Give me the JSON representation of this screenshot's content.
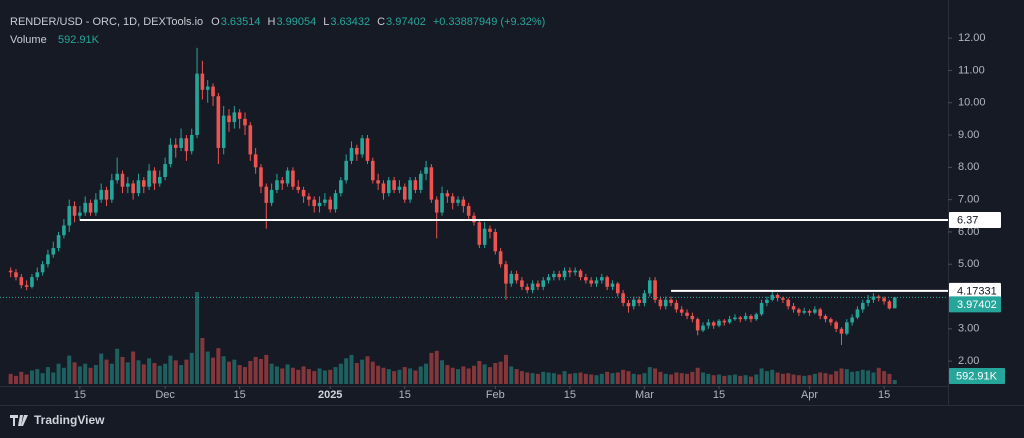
{
  "chart_data": {
    "type": "candlestick",
    "title": "RENDER/USD - ORC, 1D, DEXTools.io",
    "field_labels": [
      "O",
      "H",
      "L",
      "C"
    ],
    "change": "+0.33887949 (+9.32%)",
    "volume_name": "Volume",
    "volume_tag": "592.91K",
    "brand": "TradingView",
    "up_color": "#26a69a",
    "down_color": "#ef5350",
    "xlim": [
      -2,
      176
    ],
    "xticks": [
      {
        "value": 13,
        "label": "15"
      },
      {
        "value": 29,
        "label": "Dec"
      },
      {
        "value": 43,
        "label": "15"
      },
      {
        "value": 60,
        "label": "2025"
      },
      {
        "value": 74,
        "label": "15"
      },
      {
        "value": 91,
        "label": "Feb"
      },
      {
        "value": 105,
        "label": "15"
      },
      {
        "value": 119,
        "label": "Mar"
      },
      {
        "value": 133,
        "label": "15"
      },
      {
        "value": 150,
        "label": "Apr"
      },
      {
        "value": 164,
        "label": "15"
      }
    ],
    "ylim": [
      1.23,
      13.18
    ],
    "yticks": [
      {
        "value": 2,
        "label": "2.00"
      },
      {
        "value": 3,
        "label": "3.00"
      },
      {
        "value": 5,
        "label": "5.00"
      },
      {
        "value": 6,
        "label": "6.00"
      },
      {
        "value": 7,
        "label": "7.00"
      },
      {
        "value": 8,
        "label": "8.00"
      },
      {
        "value": 9,
        "label": "9.00"
      },
      {
        "value": 10,
        "label": "10.00"
      },
      {
        "value": 11,
        "label": "11.00"
      },
      {
        "value": 12,
        "label": "12.00"
      }
    ],
    "grid": false,
    "hlines": [
      {
        "value": 6.37,
        "from": 13
      },
      {
        "value": 4.17331,
        "from": 124
      }
    ],
    "ohlc": [
      [
        4.8,
        4.9,
        4.6,
        4.75
      ],
      [
        4.75,
        4.85,
        4.5,
        4.6
      ],
      [
        4.6,
        4.7,
        4.25,
        4.35
      ],
      [
        4.35,
        4.5,
        4.2,
        4.3
      ],
      [
        4.3,
        4.7,
        4.25,
        4.6
      ],
      [
        4.6,
        4.9,
        4.5,
        4.75
      ],
      [
        4.75,
        5.1,
        4.65,
        5.0
      ],
      [
        5.0,
        5.45,
        4.9,
        5.3
      ],
      [
        5.3,
        5.7,
        5.2,
        5.5
      ],
      [
        5.5,
        6.0,
        5.4,
        5.9
      ],
      [
        5.9,
        6.4,
        5.8,
        6.2
      ],
      [
        6.2,
        7.0,
        6.0,
        6.8
      ],
      [
        6.8,
        6.95,
        6.3,
        6.5
      ],
      [
        6.5,
        6.8,
        6.35,
        6.6
      ],
      [
        6.6,
        7.1,
        6.5,
        6.9
      ],
      [
        6.9,
        7.0,
        6.5,
        6.6
      ],
      [
        6.6,
        7.2,
        6.5,
        7.0
      ],
      [
        7.0,
        7.5,
        6.9,
        7.3
      ],
      [
        7.3,
        7.4,
        6.8,
        7.0
      ],
      [
        7.0,
        7.8,
        6.9,
        7.6
      ],
      [
        7.6,
        8.3,
        7.5,
        7.8
      ],
      [
        7.8,
        7.9,
        7.2,
        7.4
      ],
      [
        7.4,
        7.7,
        7.2,
        7.5
      ],
      [
        7.5,
        7.6,
        7.0,
        7.2
      ],
      [
        7.2,
        7.8,
        7.1,
        7.6
      ],
      [
        7.6,
        7.7,
        7.2,
        7.4
      ],
      [
        7.4,
        8.1,
        7.3,
        7.9
      ],
      [
        7.9,
        8.0,
        7.3,
        7.5
      ],
      [
        7.5,
        7.9,
        7.4,
        7.7
      ],
      [
        7.7,
        8.3,
        7.6,
        8.1
      ],
      [
        8.1,
        8.9,
        8.0,
        8.7
      ],
      [
        8.7,
        8.9,
        8.3,
        8.6
      ],
      [
        8.6,
        9.2,
        8.5,
        8.9
      ],
      [
        8.9,
        9.0,
        8.2,
        8.5
      ],
      [
        8.5,
        9.2,
        8.4,
        9.0
      ],
      [
        9.0,
        11.7,
        8.9,
        10.9
      ],
      [
        10.9,
        11.3,
        10.1,
        10.4
      ],
      [
        10.4,
        10.7,
        10.0,
        10.5
      ],
      [
        10.5,
        10.6,
        9.9,
        10.2
      ],
      [
        10.2,
        10.3,
        8.1,
        8.6
      ],
      [
        8.6,
        9.9,
        8.4,
        9.6
      ],
      [
        9.6,
        9.8,
        9.1,
        9.4
      ],
      [
        9.4,
        9.9,
        9.2,
        9.7
      ],
      [
        9.7,
        9.8,
        9.2,
        9.5
      ],
      [
        9.5,
        9.7,
        9.0,
        9.3
      ],
      [
        9.3,
        9.4,
        8.2,
        8.4
      ],
      [
        8.4,
        8.6,
        7.8,
        8.0
      ],
      [
        8.0,
        8.1,
        7.2,
        7.4
      ],
      [
        7.4,
        7.5,
        6.1,
        6.9
      ],
      [
        6.9,
        7.5,
        6.8,
        7.3
      ],
      [
        7.3,
        7.8,
        7.2,
        7.6
      ],
      [
        7.6,
        7.7,
        7.3,
        7.5
      ],
      [
        7.5,
        8.0,
        7.4,
        7.9
      ],
      [
        7.9,
        8.0,
        7.3,
        7.4
      ],
      [
        7.4,
        7.6,
        7.2,
        7.3
      ],
      [
        7.3,
        7.4,
        6.9,
        7.1
      ],
      [
        7.1,
        7.2,
        6.8,
        7.0
      ],
      [
        7.0,
        7.1,
        6.6,
        6.8
      ],
      [
        6.8,
        7.1,
        6.6,
        6.9
      ],
      [
        6.9,
        7.2,
        6.8,
        7.0
      ],
      [
        7.0,
        7.1,
        6.6,
        6.7
      ],
      [
        6.7,
        7.3,
        6.6,
        7.2
      ],
      [
        7.2,
        7.7,
        7.1,
        7.6
      ],
      [
        7.6,
        8.4,
        7.5,
        8.2
      ],
      [
        8.2,
        8.8,
        8.1,
        8.6
      ],
      [
        8.6,
        8.7,
        8.2,
        8.4
      ],
      [
        8.4,
        9.0,
        8.3,
        8.9
      ],
      [
        8.9,
        9.0,
        8.1,
        8.2
      ],
      [
        8.2,
        8.3,
        7.5,
        7.6
      ],
      [
        7.6,
        7.8,
        7.3,
        7.5
      ],
      [
        7.5,
        7.6,
        7.0,
        7.2
      ],
      [
        7.2,
        7.7,
        7.1,
        7.6
      ],
      [
        7.6,
        7.7,
        7.2,
        7.3
      ],
      [
        7.3,
        7.6,
        7.2,
        7.4
      ],
      [
        7.4,
        7.5,
        6.9,
        7.0
      ],
      [
        7.0,
        7.7,
        6.9,
        7.6
      ],
      [
        7.6,
        7.7,
        7.2,
        7.3
      ],
      [
        7.3,
        7.9,
        7.2,
        7.8
      ],
      [
        7.8,
        8.2,
        7.6,
        8.0
      ],
      [
        8.0,
        8.1,
        6.9,
        7.0
      ],
      [
        7.0,
        7.1,
        5.8,
        6.6
      ],
      [
        6.6,
        7.4,
        6.5,
        7.2
      ],
      [
        7.2,
        7.3,
        6.9,
        7.1
      ],
      [
        7.1,
        7.2,
        6.7,
        6.9
      ],
      [
        6.9,
        7.1,
        6.8,
        7.0
      ],
      [
        7.0,
        7.1,
        6.6,
        6.8
      ],
      [
        6.8,
        6.9,
        6.4,
        6.5
      ],
      [
        6.5,
        6.6,
        6.2,
        6.3
      ],
      [
        6.3,
        6.4,
        5.5,
        5.6
      ],
      [
        5.6,
        6.3,
        5.5,
        6.1
      ],
      [
        6.1,
        6.2,
        5.8,
        6.0
      ],
      [
        6.0,
        6.1,
        5.3,
        5.4
      ],
      [
        5.4,
        5.5,
        4.9,
        5.0
      ],
      [
        5.0,
        5.1,
        3.9,
        4.4
      ],
      [
        4.4,
        4.8,
        4.3,
        4.7
      ],
      [
        4.7,
        4.8,
        4.4,
        4.5
      ],
      [
        4.5,
        4.6,
        4.2,
        4.3
      ],
      [
        4.3,
        4.4,
        4.1,
        4.2
      ],
      [
        4.2,
        4.5,
        4.1,
        4.4
      ],
      [
        4.4,
        4.5,
        4.2,
        4.3
      ],
      [
        4.3,
        4.6,
        4.2,
        4.5
      ],
      [
        4.5,
        4.7,
        4.4,
        4.6
      ],
      [
        4.6,
        4.8,
        4.5,
        4.7
      ],
      [
        4.7,
        4.8,
        4.5,
        4.6
      ],
      [
        4.6,
        4.9,
        4.5,
        4.8
      ],
      [
        4.8,
        4.9,
        4.6,
        4.75
      ],
      [
        4.75,
        4.9,
        4.65,
        4.8
      ],
      [
        4.8,
        4.85,
        4.5,
        4.6
      ],
      [
        4.6,
        4.7,
        4.4,
        4.5
      ],
      [
        4.5,
        4.6,
        4.3,
        4.4
      ],
      [
        4.4,
        4.6,
        4.3,
        4.5
      ],
      [
        4.5,
        4.7,
        4.4,
        4.6
      ],
      [
        4.6,
        4.65,
        4.2,
        4.3
      ],
      [
        4.3,
        4.5,
        4.2,
        4.4
      ],
      [
        4.4,
        4.45,
        4.0,
        4.1
      ],
      [
        4.1,
        4.2,
        3.7,
        3.8
      ],
      [
        3.8,
        3.9,
        3.5,
        3.7
      ],
      [
        3.7,
        4.0,
        3.6,
        3.9
      ],
      [
        3.9,
        4.0,
        3.7,
        3.8
      ],
      [
        3.8,
        4.2,
        3.7,
        4.1
      ],
      [
        4.1,
        4.6,
        4.0,
        4.5
      ],
      [
        4.5,
        4.6,
        3.8,
        3.9
      ],
      [
        3.9,
        4.0,
        3.6,
        3.7
      ],
      [
        3.7,
        4.0,
        3.6,
        3.9
      ],
      [
        3.9,
        4.0,
        3.7,
        3.8
      ],
      [
        3.8,
        3.9,
        3.5,
        3.6
      ],
      [
        3.6,
        3.7,
        3.4,
        3.5
      ],
      [
        3.5,
        3.6,
        3.3,
        3.4
      ],
      [
        3.4,
        3.5,
        3.2,
        3.3
      ],
      [
        3.3,
        3.35,
        2.8,
        2.95
      ],
      [
        2.95,
        3.2,
        2.9,
        3.1
      ],
      [
        3.1,
        3.3,
        3.0,
        3.2
      ],
      [
        3.2,
        3.25,
        3.0,
        3.1
      ],
      [
        3.1,
        3.3,
        3.05,
        3.25
      ],
      [
        3.25,
        3.3,
        3.1,
        3.2
      ],
      [
        3.2,
        3.4,
        3.15,
        3.3
      ],
      [
        3.3,
        3.45,
        3.25,
        3.35
      ],
      [
        3.35,
        3.4,
        3.2,
        3.3
      ],
      [
        3.3,
        3.5,
        3.25,
        3.4
      ],
      [
        3.4,
        3.45,
        3.2,
        3.3
      ],
      [
        3.3,
        3.5,
        3.25,
        3.45
      ],
      [
        3.45,
        3.9,
        3.4,
        3.8
      ],
      [
        3.8,
        4.0,
        3.7,
        3.9
      ],
      [
        3.9,
        4.15,
        3.85,
        4.05
      ],
      [
        4.05,
        4.1,
        3.85,
        3.95
      ],
      [
        3.95,
        4.0,
        3.8,
        3.9
      ],
      [
        3.9,
        3.95,
        3.6,
        3.7
      ],
      [
        3.7,
        3.8,
        3.5,
        3.6
      ],
      [
        3.6,
        3.65,
        3.4,
        3.5
      ],
      [
        3.5,
        3.65,
        3.45,
        3.55
      ],
      [
        3.55,
        3.6,
        3.4,
        3.5
      ],
      [
        3.5,
        3.7,
        3.45,
        3.6
      ],
      [
        3.6,
        3.65,
        3.3,
        3.4
      ],
      [
        3.4,
        3.45,
        3.2,
        3.3
      ],
      [
        3.3,
        3.35,
        3.1,
        3.2
      ],
      [
        3.2,
        3.25,
        2.9,
        3.0
      ],
      [
        3.0,
        3.05,
        2.5,
        2.85
      ],
      [
        2.85,
        3.3,
        2.8,
        3.2
      ],
      [
        3.2,
        3.45,
        3.1,
        3.35
      ],
      [
        3.35,
        3.7,
        3.3,
        3.6
      ],
      [
        3.6,
        3.9,
        3.5,
        3.8
      ],
      [
        3.8,
        4.05,
        3.7,
        3.9
      ],
      [
        3.9,
        4.1,
        3.8,
        4.0
      ],
      [
        4.0,
        4.05,
        3.85,
        3.95
      ],
      [
        3.95,
        4.0,
        3.75,
        3.85
      ],
      [
        3.85,
        3.9,
        3.6,
        3.63
      ],
      [
        3.63514,
        3.99054,
        3.63432,
        3.97402
      ]
    ],
    "volume": [
      1500000,
      1200000,
      1800000,
      1400000,
      2000000,
      2200000,
      1600000,
      2500000,
      1700000,
      3000000,
      2400000,
      4200000,
      3200000,
      2600000,
      3000000,
      2400000,
      2800000,
      4500000,
      3600000,
      3000000,
      5200000,
      4000000,
      3200000,
      4800000,
      3500000,
      2900000,
      3800000,
      3100000,
      2700000,
      3000000,
      4200000,
      3500000,
      2800000,
      3600000,
      4600000,
      13600000,
      6800000,
      4800000,
      3900000,
      5300000,
      4100000,
      3300000,
      3600000,
      2800000,
      2500000,
      3400000,
      4000000,
      3700000,
      4300000,
      3000000,
      2600000,
      2300000,
      2900000,
      2400000,
      2100000,
      2600000,
      2200000,
      1900000,
      2300000,
      2000000,
      2100000,
      2500000,
      3000000,
      3800000,
      4300000,
      3100000,
      3600000,
      4100000,
      3300000,
      2700000,
      2400000,
      2200000,
      1900000,
      2100000,
      2500000,
      2300000,
      2000000,
      2600000,
      3000000,
      4600000,
      4900000,
      3500000,
      2800000,
      2400000,
      2200000,
      2600000,
      2300000,
      2700000,
      3400000,
      2900000,
      2500000,
      3100000,
      3300000,
      4300000,
      2600000,
      2200000,
      1900000,
      1700000,
      1600000,
      1500000,
      1800000,
      1700000,
      1600000,
      1400000,
      1900000,
      1500000,
      1600000,
      1700000,
      1500000,
      1400000,
      1300000,
      1500000,
      1800000,
      1600000,
      1700000,
      2100000,
      1900000,
      1500000,
      1400000,
      1600000,
      2500000,
      2300000,
      1800000,
      1500000,
      1400000,
      1700000,
      1600000,
      1500000,
      1800000,
      2400000,
      1700000,
      1500000,
      1300000,
      1400000,
      1200000,
      1300000,
      1400000,
      1200000,
      1300000,
      1100000,
      1400000,
      2300000,
      1900000,
      2100000,
      1700000,
      1500000,
      1600000,
      1400000,
      1300000,
      1200000,
      1300000,
      1500000,
      1700000,
      1600000,
      1400000,
      1900000,
      2300000,
      2200000,
      1800000,
      1900000,
      2100000,
      2000000,
      1700000,
      2400000,
      1900000,
      1500000,
      592910
    ]
  }
}
